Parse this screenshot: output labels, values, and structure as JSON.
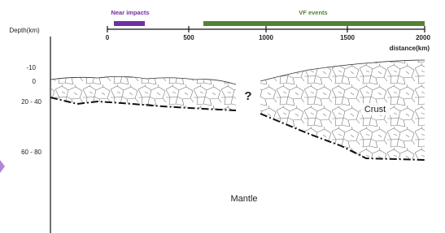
{
  "legend": {
    "near_impacts": "Near impacts",
    "vf_events": "VF events"
  },
  "distance_axis": {
    "ticks": [
      "0",
      "500",
      "1000",
      "1500",
      "2000"
    ],
    "label": "distance(km)"
  },
  "depth_axis": {
    "label": "Depth(km)",
    "ticks": [
      "-10",
      "0",
      "20 - 40",
      "60 - 80"
    ]
  },
  "annotations": {
    "unknown": "?",
    "crust": "Crust",
    "mantle": "Mantle"
  }
}
